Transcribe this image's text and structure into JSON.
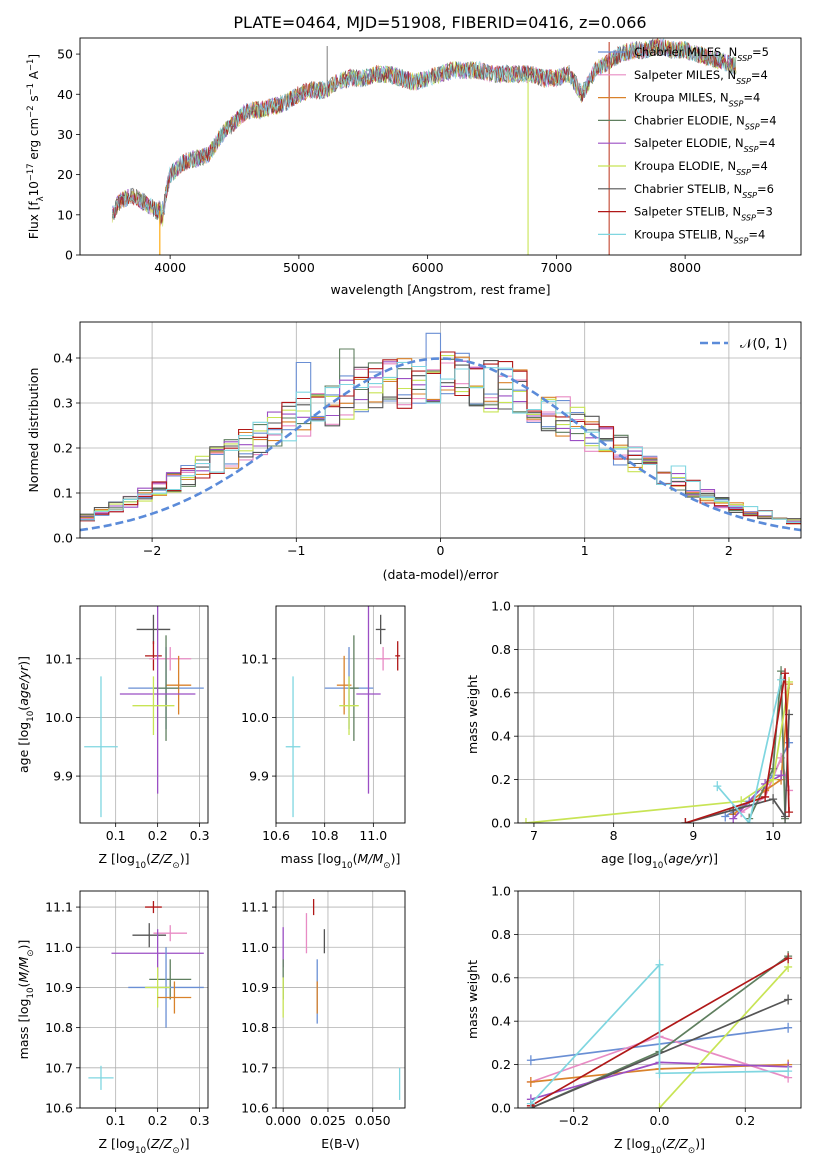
{
  "chart_data": [
    {
      "type": "line",
      "title": "PLATE=0464, MJD=51908, FIBERID=0416, z=0.066",
      "xlabel": "wavelength [Angstrom, rest frame]",
      "ylabel": "Flux [f_λ10^-17 erg cm^-2 s^-1 A^-1]",
      "xlim": [
        3300,
        8900
      ],
      "ylim": [
        0,
        54
      ],
      "xticks": [
        4000,
        5000,
        6000,
        7000,
        8000
      ],
      "yticks": [
        0,
        10,
        20,
        30,
        40,
        50
      ],
      "legend_placement": "right",
      "continuum": {
        "x": [
          3550,
          3600,
          3700,
          3800,
          3900,
          3950,
          4000,
          4100,
          4200,
          4300,
          4400,
          4500,
          4600,
          4700,
          4800,
          4900,
          5000,
          5100,
          5200,
          5300,
          5400,
          5500,
          5600,
          5700,
          5800,
          5900,
          6000,
          6100,
          6200,
          6300,
          6400,
          6500,
          6600,
          6700,
          6800,
          6900,
          7000,
          7100,
          7200,
          7300,
          7400,
          7500,
          7600,
          7700,
          7800,
          7900,
          8000,
          8100,
          8200,
          8300,
          8400
        ],
        "y": [
          10,
          13,
          15,
          13,
          11,
          13,
          20,
          23,
          24,
          25,
          30,
          33,
          36,
          36,
          37,
          38,
          40,
          41,
          41,
          43,
          44,
          44,
          45,
          45,
          44,
          43,
          44,
          45,
          46,
          46,
          46,
          45,
          45,
          45,
          45,
          44,
          44,
          45,
          40,
          46,
          48,
          50,
          51,
          51,
          52,
          51,
          51,
          50,
          49,
          48,
          47
        ]
      },
      "spikes": [
        {
          "x": 3920,
          "y0": 0,
          "y1": 11,
          "color": "#ffa500"
        },
        {
          "x": 5220,
          "y0": 41,
          "y1": 52,
          "color": "#888888"
        },
        {
          "x": 6780,
          "y0": 0,
          "y1": 44,
          "color": "#c8e455"
        },
        {
          "x": 7410,
          "y0": 0,
          "y1": 53,
          "color": "#c2442d"
        }
      ],
      "series": [
        {
          "name": "Chabrier MILES, N_SSP=5",
          "color": "#6a8fd4"
        },
        {
          "name": "Salpeter MILES, N_SSP=4",
          "color": "#e88bc4"
        },
        {
          "name": "Kroupa MILES, N_SSP=4",
          "color": "#d9822b"
        },
        {
          "name": "Chabrier ELODIE, N_SSP=4",
          "color": "#5f7f5f"
        },
        {
          "name": "Salpeter ELODIE, N_SSP=4",
          "color": "#9b4fc4"
        },
        {
          "name": "Kroupa ELODIE, N_SSP=4",
          "color": "#c8e455"
        },
        {
          "name": "Chabrier STELIB, N_SSP=6",
          "color": "#555555"
        },
        {
          "name": "Salpeter STELIB, N_SSP=3",
          "color": "#b01818"
        },
        {
          "name": "Kroupa STELIB, N_SSP=4",
          "color": "#7fd6e0"
        }
      ]
    },
    {
      "type": "line",
      "xlabel": "(data-model)/error",
      "ylabel": "Normed distribution",
      "xlim": [
        -2.5,
        2.5
      ],
      "ylim": [
        0,
        0.48
      ],
      "xticks": [
        -2,
        -1,
        0,
        1,
        2
      ],
      "yticks": [
        0.0,
        0.1,
        0.2,
        0.3,
        0.4
      ],
      "legend": "𝒩(0, 1)",
      "legend_placement": "top-right",
      "gaussian": {
        "mean": 0,
        "sigma": 1,
        "color": "#5b8bd9"
      },
      "histogram_bin_width": 0.1,
      "histogram_envelope": {
        "x": [
          -2.5,
          -2.0,
          -1.5,
          -1.0,
          -0.5,
          0.0,
          0.5,
          1.0,
          1.5,
          2.0,
          2.5
        ],
        "y": [
          0.04,
          0.1,
          0.18,
          0.27,
          0.33,
          0.36,
          0.33,
          0.24,
          0.15,
          0.07,
          0.035
        ]
      },
      "histogram_peaks": [
        {
          "x": 0.0,
          "y": 0.455
        },
        {
          "x": -0.6,
          "y": 0.42
        },
        {
          "x": -0.9,
          "y": 0.39
        },
        {
          "x": 1.7,
          "y": 0.16
        },
        {
          "x": -2.4,
          "y": 0.06
        }
      ]
    },
    {
      "type": "scatter",
      "xlabel": "Z [log10(Z/Z⊙)]",
      "ylabel": "age [log10(age/yr)]",
      "xlim": [
        0.015,
        0.32
      ],
      "ylim": [
        9.82,
        10.19
      ],
      "xticks": [
        0.1,
        0.2,
        0.3
      ],
      "yticks": [
        9.9,
        10.0,
        10.1
      ],
      "points": [
        {
          "x": 0.19,
          "y": 10.15,
          "xerr": 0.04,
          "yerr": 0.025,
          "color": "#555555"
        },
        {
          "x": 0.19,
          "y": 10.105,
          "xerr": 0.02,
          "yerr": 0.025,
          "color": "#b01818"
        },
        {
          "x": 0.23,
          "y": 10.1,
          "xerr": 0.05,
          "yerr": 0.02,
          "color": "#e88bc4"
        },
        {
          "x": 0.22,
          "y": 10.05,
          "xerr": 0.09,
          "yerr": 0.07,
          "color": "#6a8fd4"
        },
        {
          "x": 0.25,
          "y": 10.055,
          "xerr": 0.03,
          "yerr": 0.05,
          "color": "#d9822b"
        },
        {
          "x": 0.22,
          "y": 10.05,
          "xerr": 0.03,
          "yerr": 0.09,
          "color": "#5f7f5f"
        },
        {
          "x": 0.2,
          "y": 10.04,
          "xerr": 0.09,
          "yerr": 0.17,
          "color": "#9b4fc4"
        },
        {
          "x": 0.19,
          "y": 10.02,
          "xerr": 0.05,
          "yerr": 0.05,
          "color": "#c8e455"
        },
        {
          "x": 0.065,
          "y": 9.95,
          "xerr": 0.04,
          "yerr": 0.12,
          "color": "#7fd6e0"
        }
      ]
    },
    {
      "type": "scatter",
      "xlabel": "mass [log10(M/M⊙)]",
      "ylabel": "",
      "xlim": [
        10.6,
        11.13
      ],
      "ylim": [
        9.82,
        10.19
      ],
      "xticks": [
        10.6,
        10.8,
        11.0
      ],
      "yticks": [
        9.9,
        10.0,
        10.1
      ],
      "points": [
        {
          "x": 11.03,
          "y": 10.15,
          "xerr": 0.02,
          "yerr": 0.025,
          "color": "#555555"
        },
        {
          "x": 11.1,
          "y": 10.105,
          "xerr": 0.01,
          "yerr": 0.025,
          "color": "#b01818"
        },
        {
          "x": 11.04,
          "y": 10.1,
          "xerr": 0.03,
          "yerr": 0.02,
          "color": "#e88bc4"
        },
        {
          "x": 10.9,
          "y": 10.05,
          "xerr": 0.1,
          "yerr": 0.07,
          "color": "#6a8fd4"
        },
        {
          "x": 10.88,
          "y": 10.055,
          "xerr": 0.03,
          "yerr": 0.05,
          "color": "#d9822b"
        },
        {
          "x": 10.92,
          "y": 10.05,
          "xerr": 0.02,
          "yerr": 0.09,
          "color": "#5f7f5f"
        },
        {
          "x": 10.98,
          "y": 10.04,
          "xerr": 0.05,
          "yerr": 0.17,
          "color": "#9b4fc4"
        },
        {
          "x": 10.9,
          "y": 10.02,
          "xerr": 0.04,
          "yerr": 0.05,
          "color": "#c8e455"
        },
        {
          "x": 10.67,
          "y": 9.95,
          "xerr": 0.03,
          "yerr": 0.12,
          "color": "#7fd6e0"
        }
      ]
    },
    {
      "type": "line",
      "xlabel": "age [log10(age/yr)]",
      "ylabel": "mass weight",
      "xlim": [
        6.8,
        10.35
      ],
      "ylim": [
        0,
        1.0
      ],
      "xticks": [
        7,
        8,
        9,
        10
      ],
      "yticks": [
        0.0,
        0.2,
        0.4,
        0.6,
        0.8,
        1.0
      ],
      "series": [
        {
          "name": "Chabrier MILES",
          "color": "#6a8fd4",
          "x": [
            9.4,
            9.7,
            10.0,
            10.2
          ],
          "y": [
            0.03,
            0.1,
            0.22,
            0.37
          ]
        },
        {
          "name": "Salpeter MILES",
          "color": "#e88bc4",
          "x": [
            9.6,
            9.9,
            10.1,
            10.2
          ],
          "y": [
            0.05,
            0.12,
            0.3,
            0.15
          ]
        },
        {
          "name": "Kroupa MILES",
          "color": "#d9822b",
          "x": [
            9.5,
            9.9,
            10.1,
            10.2
          ],
          "y": [
            0.04,
            0.15,
            0.2,
            0.64
          ]
        },
        {
          "name": "Chabrier ELODIE",
          "color": "#5f7f5f",
          "x": [
            9.7,
            10.0,
            10.1,
            10.15
          ],
          "y": [
            0.02,
            0.25,
            0.7,
            0.02
          ]
        },
        {
          "name": "Salpeter ELODIE",
          "color": "#9b4fc4",
          "x": [
            9.5,
            9.9,
            10.1
          ],
          "y": [
            0.02,
            0.18,
            0.22
          ]
        },
        {
          "name": "Kroupa ELODIE",
          "color": "#c8e455",
          "x": [
            6.9,
            9.6,
            10.0,
            10.2
          ],
          "y": [
            0.0,
            0.1,
            0.2,
            0.65
          ]
        },
        {
          "name": "Chabrier STELIB",
          "color": "#555555",
          "x": [
            8.9,
            9.5,
            10.0,
            10.15,
            10.2
          ],
          "y": [
            0.0,
            0.06,
            0.11,
            0.03,
            0.5
          ]
        },
        {
          "name": "Salpeter STELIB",
          "color": "#b01818",
          "x": [
            8.9,
            9.9,
            10.15,
            10.2
          ],
          "y": [
            0.0,
            0.12,
            0.69,
            0.05
          ]
        },
        {
          "name": "Kroupa STELIB",
          "color": "#7fd6e0",
          "x": [
            9.3,
            9.7,
            10.1
          ],
          "y": [
            0.17,
            0.0,
            0.66
          ]
        }
      ]
    },
    {
      "type": "scatter",
      "xlabel": "Z [log10(Z/Z⊙)]",
      "ylabel": "mass [log10(M/M⊙)]",
      "xlim": [
        0.015,
        0.32
      ],
      "ylim": [
        10.6,
        11.14
      ],
      "xticks": [
        0.1,
        0.2,
        0.3
      ],
      "yticks": [
        10.6,
        10.7,
        10.8,
        10.9,
        11.0,
        11.1
      ],
      "points": [
        {
          "x": 0.19,
          "y": 11.1,
          "xerr": 0.02,
          "yerr": 0.015,
          "color": "#b01818"
        },
        {
          "x": 0.23,
          "y": 11.035,
          "xerr": 0.04,
          "yerr": 0.02,
          "color": "#e88bc4"
        },
        {
          "x": 0.18,
          "y": 11.03,
          "xerr": 0.04,
          "yerr": 0.03,
          "color": "#555555"
        },
        {
          "x": 0.2,
          "y": 10.985,
          "xerr": 0.11,
          "yerr": 0.06,
          "color": "#9b4fc4"
        },
        {
          "x": 0.23,
          "y": 10.92,
          "xerr": 0.05,
          "yerr": 0.05,
          "color": "#5f7f5f"
        },
        {
          "x": 0.22,
          "y": 10.9,
          "xerr": 0.09,
          "yerr": 0.1,
          "color": "#6a8fd4"
        },
        {
          "x": 0.2,
          "y": 10.9,
          "xerr": 0.03,
          "yerr": 0.05,
          "color": "#c8e455"
        },
        {
          "x": 0.24,
          "y": 10.875,
          "xerr": 0.04,
          "yerr": 0.04,
          "color": "#d9822b"
        },
        {
          "x": 0.065,
          "y": 10.675,
          "xerr": 0.03,
          "yerr": 0.03,
          "color": "#7fd6e0"
        }
      ]
    },
    {
      "type": "scatter",
      "xlabel": "E(B-V)",
      "ylabel": "",
      "xlim": [
        -0.004,
        0.068
      ],
      "ylim": [
        10.6,
        11.14
      ],
      "xticks": [
        0.0,
        0.025,
        0.05
      ],
      "yticks": [
        10.6,
        10.7,
        10.8,
        10.9,
        11.0,
        11.1
      ],
      "points": [
        {
          "x": 0.0,
          "y": 11.0,
          "yerr": 0.05,
          "color": "#9b4fc4"
        },
        {
          "x": 0.017,
          "y": 11.1,
          "yerr": 0.02,
          "color": "#b01818"
        },
        {
          "x": 0.013,
          "y": 11.035,
          "yerr": 0.05,
          "color": "#e88bc4"
        },
        {
          "x": 0.023,
          "y": 11.015,
          "yerr": 0.03,
          "color": "#555555"
        },
        {
          "x": 0.0,
          "y": 10.92,
          "yerr": 0.05,
          "color": "#5f7f5f"
        },
        {
          "x": 0.019,
          "y": 10.89,
          "yerr": 0.08,
          "color": "#6a8fd4"
        },
        {
          "x": 0.019,
          "y": 10.875,
          "yerr": 0.04,
          "color": "#d9822b"
        },
        {
          "x": 0.0,
          "y": 10.875,
          "yerr": 0.05,
          "color": "#c8e455"
        },
        {
          "x": 0.065,
          "y": 10.66,
          "yerr": 0.04,
          "color": "#7fd6e0"
        }
      ]
    },
    {
      "type": "line",
      "xlabel": "Z [log10(Z/Z⊙)]",
      "ylabel": "mass weight",
      "xlim": [
        -0.33,
        0.33
      ],
      "ylim": [
        0,
        1.0
      ],
      "xticks": [
        -0.2,
        0.0,
        0.2
      ],
      "yticks": [
        0.0,
        0.2,
        0.4,
        0.6,
        0.8,
        1.0
      ],
      "series": [
        {
          "name": "Chabrier MILES",
          "color": "#6a8fd4",
          "x": [
            -0.3,
            0.3
          ],
          "y": [
            0.22,
            0.37
          ]
        },
        {
          "name": "Salpeter MILES",
          "color": "#e88bc4",
          "x": [
            -0.3,
            0.0,
            0.3
          ],
          "y": [
            0.12,
            0.33,
            0.14
          ]
        },
        {
          "name": "Kroupa MILES",
          "color": "#d9822b",
          "x": [
            -0.3,
            0.0,
            0.3
          ],
          "y": [
            0.12,
            0.18,
            0.2
          ]
        },
        {
          "name": "Chabrier ELODIE",
          "color": "#5f7f5f",
          "x": [
            -0.3,
            0.0,
            0.3
          ],
          "y": [
            0.0,
            0.26,
            0.7
          ]
        },
        {
          "name": "Salpeter ELODIE",
          "color": "#9b4fc4",
          "x": [
            -0.3,
            0.0,
            0.3
          ],
          "y": [
            0.04,
            0.21,
            0.19
          ]
        },
        {
          "name": "Kroupa ELODIE",
          "color": "#c8e455",
          "x": [
            0.0,
            0.3
          ],
          "y": [
            0.0,
            0.65
          ]
        },
        {
          "name": "Chabrier STELIB",
          "color": "#555555",
          "x": [
            -0.3,
            0.3
          ],
          "y": [
            0.0,
            0.5
          ]
        },
        {
          "name": "Salpeter STELIB",
          "color": "#b01818",
          "x": [
            -0.3,
            0.3
          ],
          "y": [
            0.01,
            0.69
          ]
        },
        {
          "name": "Kroupa STELIB",
          "color": "#7fd6e0",
          "x": [
            -0.3,
            0.0,
            0.0,
            0.3
          ],
          "y": [
            0.02,
            0.66,
            0.16,
            0.17
          ]
        }
      ]
    }
  ]
}
